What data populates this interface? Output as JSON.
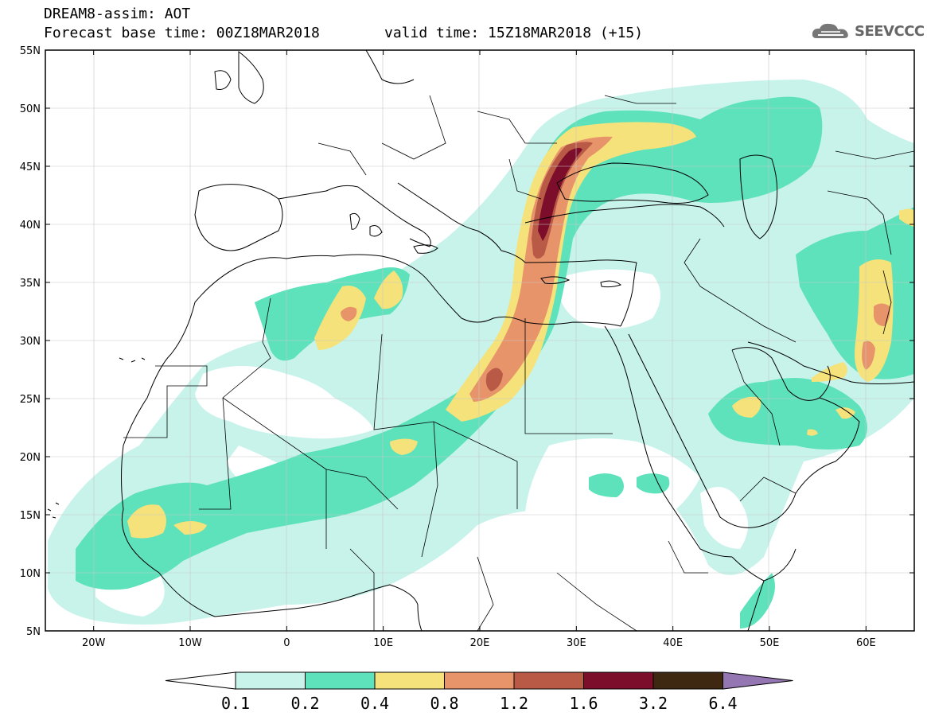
{
  "title": {
    "line1": "DREAM8-assim: AOT",
    "line2": "Forecast base time: 00Z18MAR2018",
    "valid": "valid time: 15Z18MAR2018 (+15)"
  },
  "logo": {
    "text": "SEEVCCC",
    "icon": "cloud-logo-icon"
  },
  "chart_data": {
    "type": "heatmap",
    "variable": "AOT",
    "lon_range": [
      -25,
      65
    ],
    "lat_range": [
      5,
      55
    ],
    "xticks": [
      "20W",
      "10W",
      "0",
      "10E",
      "20E",
      "30E",
      "40E",
      "50E",
      "60E"
    ],
    "xtick_values": [
      -20,
      -10,
      0,
      10,
      20,
      30,
      40,
      50,
      60
    ],
    "yticks": [
      "5N",
      "10N",
      "15N",
      "20N",
      "25N",
      "30N",
      "35N",
      "40N",
      "45N",
      "50N",
      "55N"
    ],
    "ytick_values": [
      5,
      10,
      15,
      20,
      25,
      30,
      35,
      40,
      45,
      50,
      55
    ],
    "colorbar": {
      "labels": [
        "0.1",
        "0.2",
        "0.4",
        "0.8",
        "1.2",
        "1.6",
        "3.2",
        "6.4"
      ],
      "colors": [
        "#ffffff",
        "#c8f3ea",
        "#5ee2bb",
        "#f6e27a",
        "#e7946b",
        "#b85a45",
        "#7d0e2b",
        "#3e2812",
        "#9476b2"
      ]
    }
  }
}
